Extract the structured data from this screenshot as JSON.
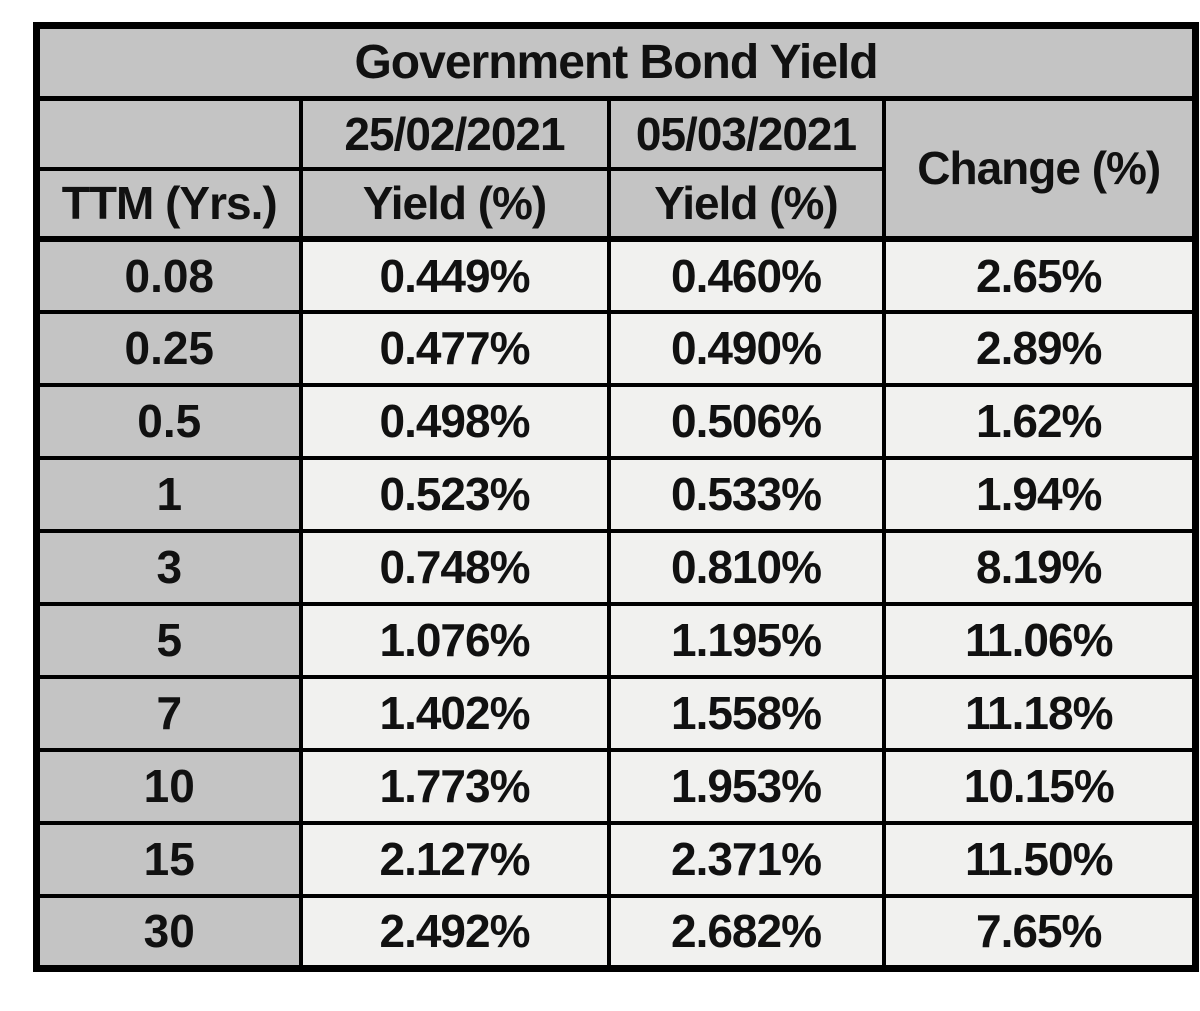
{
  "table": {
    "title": "Government Bond Yield",
    "header": {
      "date_col_1": "25/02/2021",
      "date_col_2": "05/03/2021",
      "change": "Change (%)",
      "ttm": "TTM (Yrs.)",
      "yield_1": "Yield (%)",
      "yield_2": "Yield (%)"
    },
    "rows": [
      {
        "ttm": "0.08",
        "y1": "0.449%",
        "y2": "0.460%",
        "chg": "2.65%"
      },
      {
        "ttm": "0.25",
        "y1": "0.477%",
        "y2": "0.490%",
        "chg": "2.89%"
      },
      {
        "ttm": "0.5",
        "y1": "0.498%",
        "y2": "0.506%",
        "chg": "1.62%"
      },
      {
        "ttm": "1",
        "y1": "0.523%",
        "y2": "0.533%",
        "chg": "1.94%"
      },
      {
        "ttm": "3",
        "y1": "0.748%",
        "y2": "0.810%",
        "chg": "8.19%"
      },
      {
        "ttm": "5",
        "y1": "1.076%",
        "y2": "1.195%",
        "chg": "11.06%"
      },
      {
        "ttm": "7",
        "y1": "1.402%",
        "y2": "1.558%",
        "chg": "11.18%"
      },
      {
        "ttm": "10",
        "y1": "1.773%",
        "y2": "1.953%",
        "chg": "10.15%"
      },
      {
        "ttm": "15",
        "y1": "2.127%",
        "y2": "2.371%",
        "chg": "11.50%"
      },
      {
        "ttm": "30",
        "y1": "2.492%",
        "y2": "2.682%",
        "chg": "7.65%"
      }
    ]
  },
  "colors": {
    "header_bg": "#c4c4c4",
    "data_bg": "#f1f1ef",
    "border": "#000000",
    "text": "#111111",
    "page_bg": "#ffffff"
  },
  "chart_data": {
    "type": "table",
    "title": "Government Bond Yield",
    "columns": [
      "TTM (Yrs.)",
      "25/02/2021 Yield (%)",
      "05/03/2021 Yield (%)",
      "Change (%)"
    ],
    "ttm_years": [
      0.08,
      0.25,
      0.5,
      1,
      3,
      5,
      7,
      10,
      15,
      30
    ],
    "series": [
      {
        "name": "25/02/2021 Yield (%)",
        "values": [
          0.449,
          0.477,
          0.498,
          0.523,
          0.748,
          1.076,
          1.402,
          1.773,
          2.127,
          2.492
        ]
      },
      {
        "name": "05/03/2021 Yield (%)",
        "values": [
          0.46,
          0.49,
          0.506,
          0.533,
          0.81,
          1.195,
          1.558,
          1.953,
          2.371,
          2.682
        ]
      },
      {
        "name": "Change (%)",
        "values": [
          2.65,
          2.89,
          1.62,
          1.94,
          8.19,
          11.06,
          11.18,
          10.15,
          11.5,
          7.65
        ]
      }
    ]
  }
}
